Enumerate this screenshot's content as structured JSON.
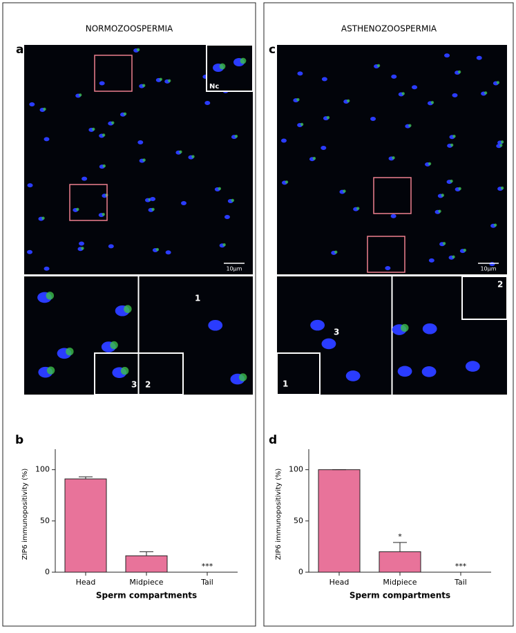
{
  "panels": [
    {
      "title": "NORMOZOOSPERMIA",
      "image_label": "a",
      "inset_label": "Nc",
      "scale_bar": "10μm",
      "crop_labels": [
        "1",
        "3",
        "2"
      ]
    },
    {
      "title": "ASTHENOZOOSPERMIA",
      "image_label": "c",
      "scale_bar": "10μm",
      "crop_labels": [
        "3",
        "1",
        "2"
      ]
    }
  ],
  "chart_data": [
    {
      "type": "bar",
      "panel_label": "b",
      "ylabel": "ZIP6 immunopositivity (%)",
      "xlabel": "Sperm compartments",
      "categories": [
        "Head",
        "Midpiece",
        "Tail"
      ],
      "values": [
        91,
        16,
        0
      ],
      "errors": [
        2,
        4,
        0
      ],
      "significance": [
        null,
        null,
        "***"
      ],
      "color": "#e8739a",
      "ylim": [
        0,
        120
      ],
      "yticks": [
        0,
        50,
        100
      ]
    },
    {
      "type": "bar",
      "panel_label": "d",
      "ylabel": "ZIP6 immunopositivity (%)",
      "xlabel": "Sperm compartments",
      "categories": [
        "Head",
        "Midpiece",
        "Tail"
      ],
      "values": [
        100,
        20,
        0
      ],
      "errors": [
        0,
        9,
        0
      ],
      "significance": [
        null,
        "*",
        "***"
      ],
      "color": "#e8739a",
      "ylim": [
        0,
        120
      ],
      "yticks": [
        0,
        50,
        100
      ]
    }
  ]
}
